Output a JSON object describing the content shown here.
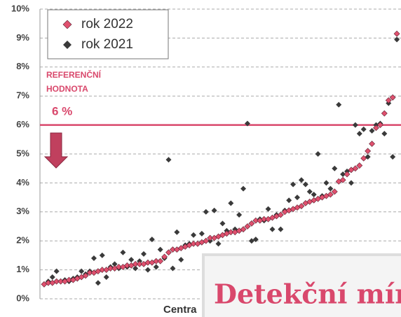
{
  "chart_data": {
    "type": "scatter",
    "xlabel": "Centra",
    "xlim": [
      0,
      87
    ],
    "ylim": [
      0,
      10
    ],
    "yticks": [
      {
        "value": 0,
        "label": "0%"
      },
      {
        "value": 1,
        "label": "1%"
      },
      {
        "value": 2,
        "label": "2%"
      },
      {
        "value": 3,
        "label": "3%"
      },
      {
        "value": 4,
        "label": "4%"
      },
      {
        "value": 5,
        "label": "5%"
      },
      {
        "value": 6,
        "label": "6%"
      },
      {
        "value": 7,
        "label": "7%"
      },
      {
        "value": 8,
        "label": "8%"
      },
      {
        "value": 9,
        "label": "9%"
      },
      {
        "value": 10,
        "label": "10%"
      }
    ],
    "grid": true,
    "legend": "top-left",
    "reference": {
      "value": 6,
      "color": "#d9486c",
      "label_lines": [
        "REFERENČNÍ",
        "HODNOTA"
      ],
      "value_label": "6 %"
    },
    "x": [
      1,
      2,
      3,
      4,
      5,
      6,
      7,
      8,
      9,
      10,
      11,
      12,
      13,
      14,
      15,
      16,
      17,
      18,
      19,
      20,
      21,
      22,
      23,
      24,
      25,
      26,
      27,
      28,
      29,
      30,
      31,
      32,
      33,
      34,
      35,
      36,
      37,
      38,
      39,
      40,
      41,
      42,
      43,
      44,
      45,
      46,
      47,
      48,
      49,
      50,
      51,
      52,
      53,
      54,
      55,
      56,
      57,
      58,
      59,
      60,
      61,
      62,
      63,
      64,
      65,
      66,
      67,
      68,
      69,
      70,
      71,
      72,
      73,
      74,
      75,
      76,
      77,
      78,
      79,
      80,
      81,
      82,
      83,
      84,
      85,
      86
    ],
    "series": [
      {
        "name": "rok 2021",
        "color": "#3a3a3a",
        "values": [
          0.5,
          0.6,
          0.75,
          0.95,
          0.6,
          0.65,
          0.6,
          0.7,
          0.75,
          0.95,
          0.85,
          0.95,
          1.4,
          0.55,
          1.5,
          0.75,
          1.1,
          1.2,
          1.05,
          1.6,
          1.1,
          1.35,
          1.05,
          1.3,
          1.55,
          1.0,
          2.05,
          1.1,
          1.7,
          1.4,
          4.8,
          1.05,
          2.3,
          1.35,
          1.85,
          1.9,
          2.2,
          1.9,
          2.25,
          3.0,
          2.0,
          3.05,
          1.9,
          2.6,
          2.35,
          3.3,
          2.4,
          2.9,
          3.8,
          6.05,
          2.0,
          2.05,
          2.75,
          2.7,
          3.1,
          2.4,
          2.9,
          2.4,
          3.05,
          3.4,
          3.95,
          3.5,
          4.1,
          3.95,
          3.7,
          3.6,
          5.0,
          3.55,
          4.0,
          3.8,
          4.5,
          6.7,
          4.3,
          4.4,
          4.0,
          6.0,
          5.7,
          5.85,
          4.9,
          5.8,
          6.0,
          6.05,
          5.7,
          6.75,
          4.9,
          8.95
        ]
      },
      {
        "name": "rok 2022",
        "color": "#e0506e",
        "values": [
          0.5,
          0.55,
          0.55,
          0.6,
          0.6,
          0.6,
          0.65,
          0.65,
          0.7,
          0.75,
          0.8,
          0.9,
          0.9,
          0.95,
          1.0,
          1.0,
          1.05,
          1.05,
          1.1,
          1.1,
          1.15,
          1.15,
          1.2,
          1.2,
          1.2,
          1.25,
          1.25,
          1.3,
          1.3,
          1.45,
          1.6,
          1.7,
          1.7,
          1.75,
          1.8,
          1.85,
          1.9,
          1.9,
          1.95,
          2.0,
          2.1,
          2.1,
          2.15,
          2.2,
          2.25,
          2.3,
          2.3,
          2.35,
          2.4,
          2.5,
          2.6,
          2.7,
          2.7,
          2.75,
          2.75,
          2.8,
          2.85,
          2.9,
          3.0,
          3.05,
          3.1,
          3.15,
          3.2,
          3.3,
          3.35,
          3.4,
          3.45,
          3.5,
          3.55,
          3.6,
          3.7,
          4.05,
          4.1,
          4.3,
          4.45,
          4.5,
          4.6,
          4.85,
          5.1,
          5.35,
          5.9,
          6.0,
          6.4,
          6.85,
          6.95,
          9.15
        ]
      }
    ]
  },
  "overlay": {
    "text": "Detekční míra"
  }
}
